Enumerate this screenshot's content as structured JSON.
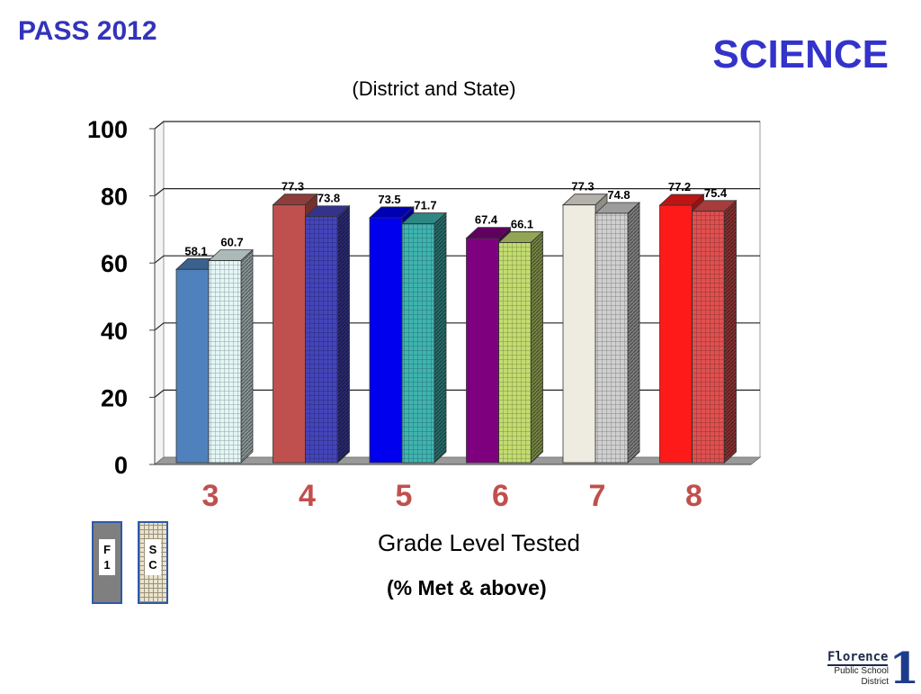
{
  "header": {
    "pass_title": "PASS 2012",
    "subject_title": "SCIENCE",
    "subtitle": "(District and State)"
  },
  "axis": {
    "xlabel": "Grade Level Tested",
    "note": "(% Met & above)"
  },
  "legend": {
    "items": [
      {
        "name": "F1",
        "label": "F 1",
        "color": "#7f7f7f"
      },
      {
        "name": "SC",
        "label": "S C",
        "color": "#e9e3cf"
      }
    ]
  },
  "logo": {
    "name": "Florence",
    "line1": "Public School",
    "line2": "District",
    "number": "1"
  },
  "chart_data": {
    "type": "bar",
    "categories": [
      "3",
      "4",
      "5",
      "6",
      "7",
      "8"
    ],
    "series": [
      {
        "name": "F1",
        "values": [
          58.1,
          77.3,
          73.5,
          67.4,
          77.3,
          77.2
        ]
      },
      {
        "name": "SC",
        "values": [
          60.7,
          73.8,
          71.7,
          66.1,
          74.8,
          75.4
        ]
      }
    ],
    "ylim": [
      0,
      100
    ],
    "yticks": [
      0,
      20,
      40,
      60,
      80,
      100
    ],
    "grid": true,
    "colors": {
      "district": [
        "#4f81bd",
        "#c0504d",
        "#0000ee",
        "#7f007f",
        "#eeece1",
        "#ff1a1a"
      ],
      "state": [
        "#e4f6f6",
        "#4444bb",
        "#3fb4b0",
        "#c3dc70",
        "#d0d0d0",
        "#e05050"
      ],
      "category_label": "#c0504d"
    }
  }
}
